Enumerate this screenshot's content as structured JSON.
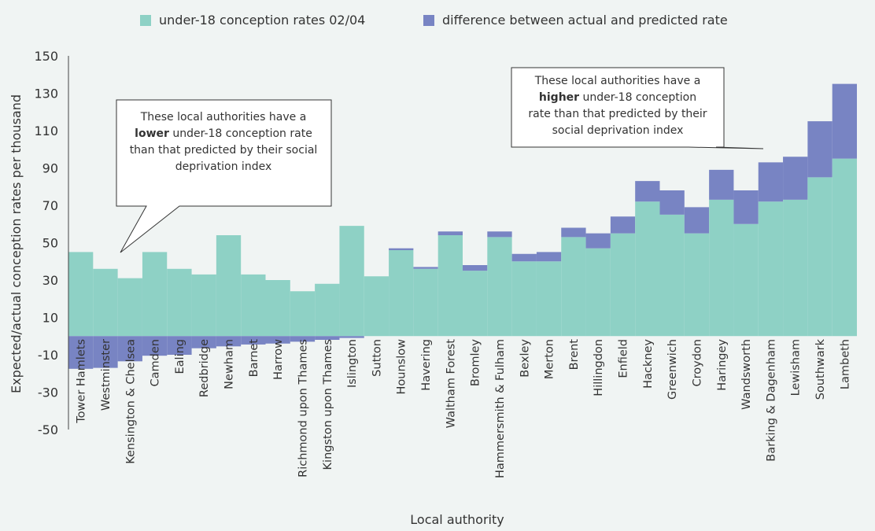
{
  "chart_data": {
    "type": "bar",
    "stacked": true,
    "categories": [
      "Tower Hamlets",
      "Westminster",
      "Kensington & Chelsea",
      "Camden",
      "Ealing",
      "Redbridge",
      "Newham",
      "Barnet",
      "Harrow",
      "Richmond upon Thames",
      "Kingston upon Thames",
      "Islington",
      "Sutton",
      "Hounslow",
      "Havering",
      "Waltham Forest",
      "Bromley",
      "Hammersmith & Fulham",
      "Bexley",
      "Merton",
      "Brent",
      "Hillingdon",
      "Enfield",
      "Hackney",
      "Greenwich",
      "Croydon",
      "Haringey",
      "Wandsworth",
      "Barking & Dagenham",
      "Lewisham",
      "Southwark",
      "Lambeth"
    ],
    "series": [
      {
        "name": "under-18 conception rates 02/04",
        "color": "#8ed1c5",
        "values": [
          45,
          36,
          31,
          45,
          36,
          33,
          54,
          33,
          30,
          24,
          28,
          59,
          32,
          46,
          36,
          54,
          35,
          53,
          40,
          40,
          53,
          47,
          55,
          72,
          65,
          55,
          73,
          60,
          72,
          73,
          85,
          95
        ]
      },
      {
        "name": "difference between actual and predicted rate",
        "color": "#7884c3",
        "values": [
          -17.5,
          -17,
          -13.5,
          -10.5,
          -10,
          -6.5,
          -5.5,
          -4.5,
          -4,
          -3,
          -2,
          -1,
          0,
          1,
          1,
          2,
          3,
          3,
          4,
          5,
          5,
          8,
          9,
          11,
          13,
          14,
          16,
          18,
          21,
          23,
          30,
          40
        ]
      }
    ],
    "xlabel": "Local authority",
    "ylabel": "Expected/actual conception rates per thousand",
    "ylim": [
      -50,
      150
    ],
    "yticks": [
      -50,
      -30,
      -10,
      10,
      30,
      50,
      70,
      90,
      110,
      130,
      150
    ],
    "grid": false,
    "legend": "top"
  },
  "annotations": {
    "lower": {
      "pre": "These local authorities have a",
      "bold": "lower",
      "post": " under-18 conception rate",
      "line3": "than that predicted by their social",
      "line4": "deprivation index"
    },
    "higher": {
      "pre": "These local authorities have a",
      "bold": "higher",
      "post": " under-18 conception",
      "line3": "rate than that predicted by their",
      "line4": "social deprivation index"
    }
  }
}
